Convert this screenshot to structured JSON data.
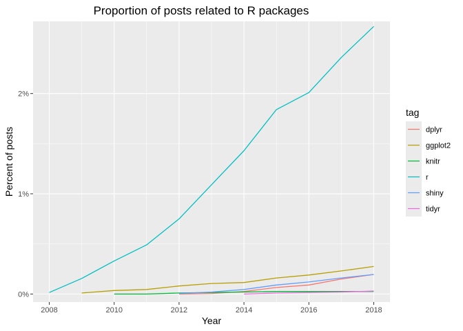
{
  "chart_data": {
    "type": "line",
    "title": "Proportion of posts related to R packages",
    "xlabel": "Year",
    "ylabel": "Percent of posts",
    "xlim": [
      2007.5,
      2018.5
    ],
    "ylim": [
      -0.0008,
      0.0272
    ],
    "x_ticks": [
      {
        "value": 2008,
        "label": "2008"
      },
      {
        "value": 2010,
        "label": "2010"
      },
      {
        "value": 2012,
        "label": "2012"
      },
      {
        "value": 2014,
        "label": "2014"
      },
      {
        "value": 2016,
        "label": "2016"
      },
      {
        "value": 2018,
        "label": "2018"
      }
    ],
    "y_ticks": [
      {
        "value": 0,
        "label": "0%"
      },
      {
        "value": 0.01,
        "label": "1%"
      },
      {
        "value": 0.02,
        "label": "2%"
      }
    ],
    "grid": true,
    "legend": {
      "title": "tag",
      "placement": "right"
    },
    "series": [
      {
        "name": "dplyr",
        "color": "#F8766D",
        "x": [
          2012,
          2013,
          2014,
          2015,
          2016,
          2017,
          2018
        ],
        "y": [
          0.0,
          5e-05,
          0.00025,
          0.00065,
          0.0009,
          0.0015,
          0.00195
        ]
      },
      {
        "name": "ggplot2",
        "color": "#B79F00",
        "x": [
          2009,
          2010,
          2011,
          2012,
          2013,
          2014,
          2015,
          2016,
          2017,
          2018
        ],
        "y": [
          0.0001,
          0.00035,
          0.00045,
          0.0008,
          0.00105,
          0.00115,
          0.0016,
          0.0019,
          0.0023,
          0.00275
        ]
      },
      {
        "name": "knitr",
        "color": "#00BA38",
        "x": [
          2010,
          2011,
          2012,
          2013,
          2014,
          2015,
          2016,
          2017,
          2018
        ],
        "y": [
          0.0,
          0.0,
          0.0001,
          0.00015,
          0.0002,
          0.00025,
          0.00025,
          0.00025,
          0.00025
        ]
      },
      {
        "name": "r",
        "color": "#00BFC4",
        "x": [
          2008,
          2009,
          2010,
          2011,
          2012,
          2013,
          2014,
          2015,
          2016,
          2017,
          2018
        ],
        "y": [
          0.00015,
          0.00155,
          0.0033,
          0.0049,
          0.0075,
          0.0109,
          0.0143,
          0.0184,
          0.0201,
          0.0236,
          0.0267
        ]
      },
      {
        "name": "shiny",
        "color": "#619CFF",
        "x": [
          2012,
          2013,
          2014,
          2015,
          2016,
          2017,
          2018
        ],
        "y": [
          5e-05,
          0.0002,
          0.00045,
          0.0009,
          0.0012,
          0.0016,
          0.00195
        ]
      },
      {
        "name": "tidyr",
        "color": "#F564E3",
        "x": [
          2014,
          2015,
          2016,
          2017,
          2018
        ],
        "y": [
          0.0,
          0.0001,
          0.00015,
          0.0002,
          0.0003
        ]
      }
    ]
  }
}
